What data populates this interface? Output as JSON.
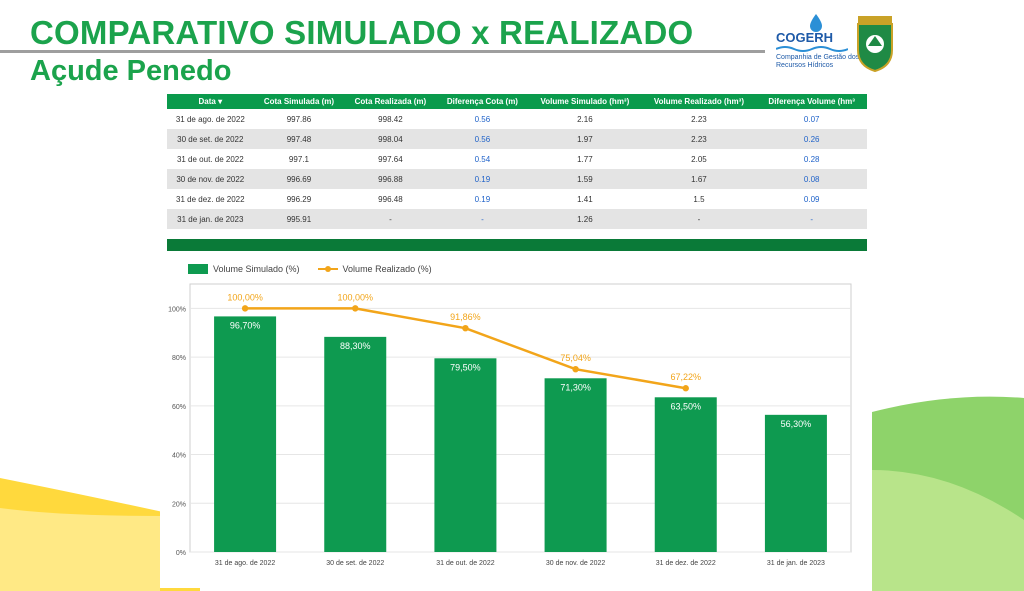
{
  "header": {
    "title": "COMPARATIVO SIMULADO x REALIZADO",
    "subtitle": "Açude Penedo",
    "logo_name": "COGERH",
    "logo_subtitle": "Companhia de Gestão dos Recursos Hídricos"
  },
  "colors": {
    "title": "#1ba34c",
    "bar": "#0e9a50",
    "line": "#f2a51a",
    "table_header": "#0a9a4c",
    "diff_text": "#1f62c9",
    "band": "#0a7a38"
  },
  "table": {
    "columns": [
      "Data ▾",
      "Cota Simulada (m)",
      "Cota Realizada (m)",
      "Diferença Cota (m)",
      "Volume Simulado (hm³)",
      "Volume Realizado (hm³)",
      "Diferença Volume (hm³"
    ],
    "rows": [
      [
        "31 de ago. de 2022",
        "997.86",
        "998.42",
        "0.56",
        "2.16",
        "2.23",
        "0.07"
      ],
      [
        "30 de set. de 2022",
        "997.48",
        "998.04",
        "0.56",
        "1.97",
        "2.23",
        "0.26"
      ],
      [
        "31 de out. de 2022",
        "997.1",
        "997.64",
        "0.54",
        "1.77",
        "2.05",
        "0.28"
      ],
      [
        "30 de nov. de 2022",
        "996.69",
        "996.88",
        "0.19",
        "1.59",
        "1.67",
        "0.08"
      ],
      [
        "31 de dez. de 2022",
        "996.29",
        "996.48",
        "0.19",
        "1.41",
        "1.5",
        "0.09"
      ],
      [
        "31 de jan. de 2023",
        "995.91",
        "-",
        "-",
        "1.26",
        "-",
        "-"
      ]
    ]
  },
  "chart_data": {
    "type": "bar",
    "categories": [
      "31 de ago. de 2022",
      "30 de set. de 2022",
      "31 de out. de 2022",
      "30 de nov. de 2022",
      "31 de dez. de 2022",
      "31 de jan. de 2023"
    ],
    "series": [
      {
        "name": "Volume Simulado (%)",
        "type": "bar",
        "values": [
          96.7,
          88.3,
          79.5,
          71.3,
          63.5,
          56.3
        ],
        "labels": [
          "96,70%",
          "88,30%",
          "79,50%",
          "71,30%",
          "63,50%",
          "56,30%"
        ]
      },
      {
        "name": "Volume Realizado (%)",
        "type": "line",
        "values": [
          100.0,
          100.0,
          91.86,
          75.04,
          67.22,
          null
        ],
        "labels": [
          "100,00%",
          "100,00%",
          "91,86%",
          "75,04%",
          "67,22%",
          null
        ]
      }
    ],
    "yticks": [
      "0%",
      "20%",
      "40%",
      "60%",
      "80%",
      "100%"
    ],
    "ylim": [
      0,
      110
    ],
    "grid": true,
    "legend_position": "top-left"
  }
}
